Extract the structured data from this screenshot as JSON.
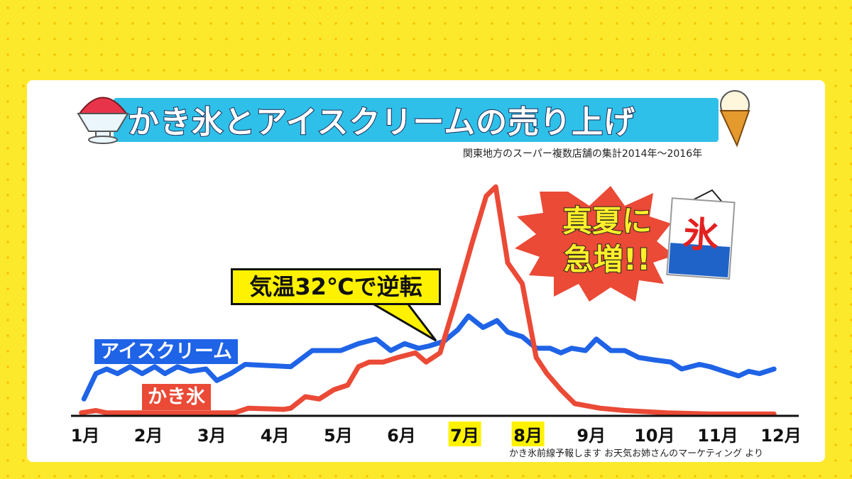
{
  "title": "かき氷とアイスクリームの売り上げ",
  "subtitle": "関東地方のスーパー複数店舗の集計2014年～2016年",
  "source": "かき氷前線予報します お天気お姉さんのマーケティング より",
  "callout": "気温32℃で逆転",
  "burst": "真夏に急増!!",
  "flag_char": "氷",
  "colors": {
    "ice_cream": "#1f63e6",
    "kakigori": "#ea4a36",
    "highlight": "#fff200",
    "banner": "#2ec0e8"
  },
  "chart_data": {
    "type": "line",
    "title": "かき氷とアイスクリームの売り上げ",
    "xlabel": "",
    "ylabel": "",
    "x_ticks": [
      "1月",
      "2月",
      "3月",
      "4月",
      "5月",
      "6月",
      "7月",
      "8月",
      "9月",
      "10月",
      "11月",
      "12月"
    ],
    "highlighted_ticks": [
      "7月",
      "8月"
    ],
    "xlim": [
      1,
      12
    ],
    "ylim": [
      0,
      100
    ],
    "grid": false,
    "series": [
      {
        "name": "アイスクリーム",
        "x": [
          0.98,
          1.17,
          1.34,
          1.51,
          1.71,
          1.9,
          2.1,
          2.26,
          2.46,
          2.66,
          2.91,
          3.08,
          3.3,
          3.53,
          4.25,
          4.59,
          5.04,
          5.32,
          5.6,
          5.83,
          6.05,
          6.27,
          6.44,
          6.67,
          6.89,
          7.06,
          7.29,
          7.51,
          7.68,
          7.91,
          8.13,
          8.35,
          8.52,
          8.69,
          8.91,
          9.08,
          9.31,
          9.53,
          9.75,
          9.98,
          10.26,
          10.43,
          10.71,
          10.88,
          11.1,
          11.33,
          11.49,
          11.66,
          11.89
        ],
        "y": [
          7,
          18,
          20,
          18,
          21,
          18,
          21,
          18,
          21,
          19,
          20,
          15,
          18,
          22,
          21,
          28,
          28,
          31,
          33,
          28,
          31,
          29,
          30,
          32,
          37,
          43,
          38,
          41,
          36,
          34,
          29,
          29,
          27,
          29,
          28,
          33,
          28,
          28,
          25,
          24,
          23,
          20,
          22,
          21,
          19,
          17,
          19,
          18,
          20
        ]
      },
      {
        "name": "かき氷",
        "x": [
          0.94,
          1.17,
          1.34,
          1.9,
          3.02,
          3.36,
          3.58,
          4.14,
          4.25,
          4.48,
          4.7,
          4.93,
          5.15,
          5.32,
          5.49,
          5.71,
          5.94,
          6.22,
          6.39,
          6.61,
          6.84,
          7.12,
          7.34,
          7.49,
          7.68,
          7.91,
          8.13,
          8.3,
          8.52,
          8.74,
          9.14,
          9.53,
          10.2,
          10.88,
          11.89
        ],
        "y": [
          1,
          2,
          1,
          1,
          1,
          1,
          3,
          2.5,
          3,
          8,
          7,
          11,
          13,
          21,
          23,
          23,
          25,
          27,
          23,
          27,
          48,
          75,
          95,
          99,
          66,
          57,
          25,
          18,
          11,
          5,
          3,
          2,
          1,
          0.5,
          0.5
        ]
      }
    ],
    "annotations": [
      "気温32℃で逆転",
      "真夏に急増!!"
    ]
  }
}
